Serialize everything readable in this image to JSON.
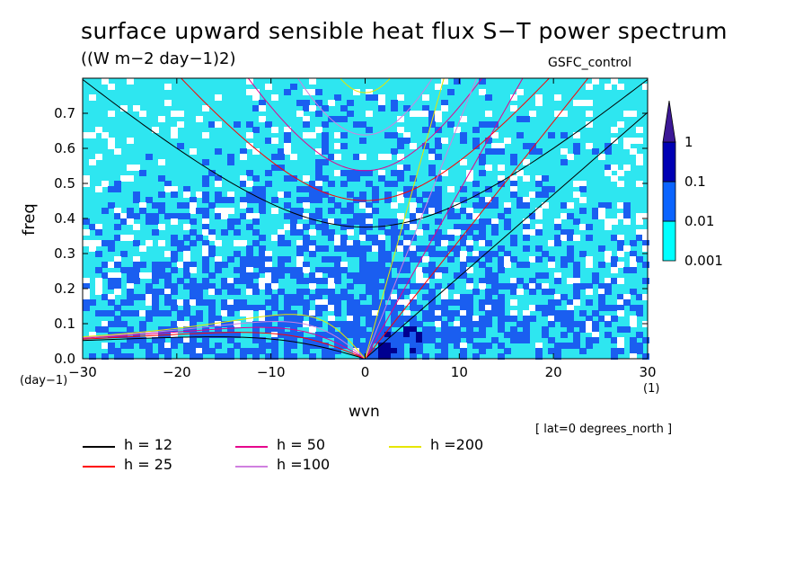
{
  "header": {
    "title": "surface upward sensible heat flux S−T power spectrum",
    "units": "((W m−2 day−1)2)",
    "run_label": "GSFC_control"
  },
  "chart_data": {
    "type": "heatmap",
    "xlabel": "wvn",
    "ylabel": "freq",
    "x_unit": "(1)",
    "y_unit": "(day−1)",
    "xlim": [
      -30,
      30
    ],
    "ylim": [
      0,
      0.8
    ],
    "xticks": [
      "−30",
      "−20",
      "−10",
      "0",
      "10",
      "20",
      "30"
    ],
    "xtick_values": [
      -30,
      -20,
      -10,
      0,
      10,
      20,
      30
    ],
    "yticks": [
      "0.0",
      "0.1",
      "0.2",
      "0.3",
      "0.4",
      "0.5",
      "0.6",
      "0.7"
    ],
    "ytick_values": [
      0,
      0.1,
      0.2,
      0.3,
      0.4,
      0.5,
      0.6,
      0.7
    ],
    "colorbar": {
      "levels": [
        "0.001",
        "0.01",
        "0.1",
        "1"
      ],
      "colors": [
        "#00ffff",
        "#0a64ff",
        "#0000b4",
        "#3c1896"
      ]
    },
    "fill_colors": {
      "background": "#ffffff",
      "level1": "#2ee6f0",
      "level2": "#1a5ef0",
      "level3": "#000090"
    },
    "dispersion_curves": [
      {
        "name": "h = 12",
        "h": 12,
        "color": "#000000"
      },
      {
        "name": "h = 25",
        "h": 25,
        "color": "#ff0000"
      },
      {
        "name": "h = 50",
        "h": 50,
        "color": "#e6008c"
      },
      {
        "name": "h =100",
        "h": 100,
        "color": "#d080e0"
      },
      {
        "name": "h =200",
        "h": 200,
        "color": "#e6e600"
      }
    ],
    "annotation": "[ lat=0 degrees_north ]"
  }
}
